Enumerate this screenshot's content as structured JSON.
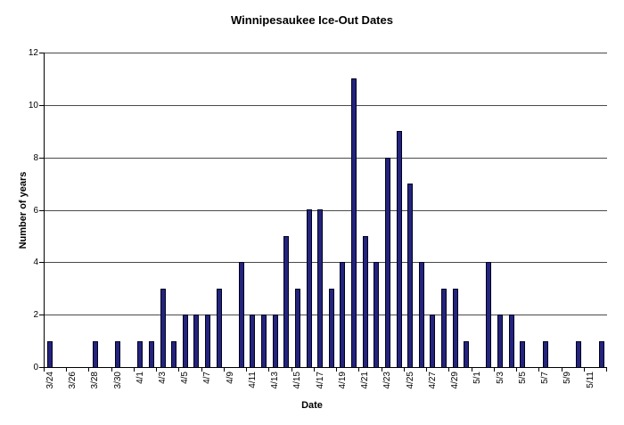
{
  "chart_data": {
    "type": "bar",
    "title": "Winnipesaukee Ice-Out Dates",
    "xlabel": "Date",
    "ylabel": "Number of years",
    "ylim": [
      0,
      12
    ],
    "ytick_step": 2,
    "grid": true,
    "legend": false,
    "bar_color": "#24247d",
    "bar_border_color": "#000020",
    "gridline_color": "#4a4a4a",
    "axis_color": "#000000",
    "categories": [
      "3/24",
      "3/25",
      "3/26",
      "3/27",
      "3/28",
      "3/29",
      "3/30",
      "3/31",
      "4/1",
      "4/2",
      "4/3",
      "4/4",
      "4/5",
      "4/6",
      "4/7",
      "4/8",
      "4/9",
      "4/10",
      "4/11",
      "4/12",
      "4/13",
      "4/14",
      "4/15",
      "4/16",
      "4/17",
      "4/18",
      "4/19",
      "4/20",
      "4/21",
      "4/22",
      "4/23",
      "4/24",
      "4/25",
      "4/26",
      "4/27",
      "4/28",
      "4/29",
      "4/30",
      "5/1",
      "5/2",
      "5/3",
      "5/4",
      "5/5",
      "5/6",
      "5/7",
      "5/8",
      "5/9",
      "5/10",
      "5/11",
      "5/12"
    ],
    "values": [
      1,
      0,
      0,
      0,
      1,
      0,
      1,
      0,
      1,
      1,
      3,
      1,
      2,
      2,
      2,
      3,
      0,
      4,
      2,
      2,
      2,
      5,
      3,
      6,
      6,
      3,
      4,
      11,
      5,
      4,
      8,
      9,
      7,
      4,
      2,
      3,
      3,
      1,
      0,
      4,
      2,
      2,
      1,
      0,
      1,
      0,
      0,
      1,
      0,
      1
    ],
    "x_tick_labels": [
      "3/24",
      "3/26",
      "3/28",
      "3/30",
      "4/1",
      "4/3",
      "4/5",
      "4/7",
      "4/9",
      "4/11",
      "4/13",
      "4/15",
      "4/17",
      "4/19",
      "4/21",
      "4/23",
      "4/25",
      "4/27",
      "4/29",
      "5/1",
      "5/3",
      "5/5",
      "5/7",
      "5/9",
      "5/11"
    ],
    "y_tick_labels": [
      "0",
      "2",
      "4",
      "6",
      "8",
      "10",
      "12"
    ]
  }
}
